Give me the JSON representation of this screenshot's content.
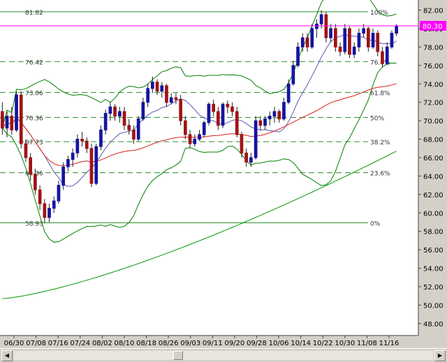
{
  "chart_data": {
    "type": "candlestick",
    "x_tick_labels": [
      "06/30",
      "07/08",
      "07/16",
      "07/24",
      "08/02",
      "08/10",
      "08/18",
      "08/26",
      "09/03",
      "09/11",
      "09/20",
      "09/28",
      "10/06",
      "10/14",
      "10/22",
      "10/30",
      "11/08",
      "11/16"
    ],
    "y_tick_labels": [
      "82.00",
      "80.00",
      "78.00",
      "76.00",
      "74.00",
      "72.00",
      "70.00",
      "68.00",
      "66.00",
      "64.00",
      "62.00",
      "60.00",
      "58.00",
      "56.00",
      "54.00",
      "52.00",
      "50.00",
      "48.00"
    ],
    "ylim": [
      46.7,
      83.1
    ],
    "grid": false,
    "current_price": "80.30",
    "colors": {
      "up": "#1414a0",
      "down": "#a01414",
      "bollinger": "#008000",
      "ma_fast": "#5a5ab4",
      "ma_mid": "#dc1e1e",
      "ma_slow": "#009600",
      "fib": "#2a8c2a",
      "price_line": "#ff00ff",
      "panel": "#d4d0c8"
    },
    "fib_labels_left": [
      "81.82",
      "76.42",
      "73.06",
      "70.36",
      "67.73",
      "64.36",
      "58.93"
    ],
    "fib_labels_right": [
      "100%",
      "76.4%",
      "61.8%",
      "50%",
      "38.2%",
      "23.6%",
      "0%"
    ],
    "fib_levels": [
      81.82,
      76.42,
      73.06,
      70.36,
      67.73,
      64.36,
      58.93
    ],
    "candles": [
      {
        "o": 71.0,
        "h": 72.0,
        "l": 68.5,
        "c": 69.2
      },
      {
        "o": 69.2,
        "h": 71.0,
        "l": 68.2,
        "c": 70.5
      },
      {
        "o": 70.5,
        "h": 71.5,
        "l": 68.5,
        "c": 69.0
      },
      {
        "o": 69.0,
        "h": 73.2,
        "l": 68.8,
        "c": 72.8
      },
      {
        "o": 72.8,
        "h": 73.2,
        "l": 67.0,
        "c": 67.5
      },
      {
        "o": 67.5,
        "h": 68.0,
        "l": 65.5,
        "c": 66.0
      },
      {
        "o": 66.0,
        "h": 66.5,
        "l": 63.5,
        "c": 64.2
      },
      {
        "o": 64.2,
        "h": 64.8,
        "l": 62.0,
        "c": 62.5
      },
      {
        "o": 62.5,
        "h": 63.0,
        "l": 60.3,
        "c": 61.0
      },
      {
        "o": 61.0,
        "h": 61.5,
        "l": 58.9,
        "c": 59.5
      },
      {
        "o": 59.5,
        "h": 61.0,
        "l": 59.0,
        "c": 60.5
      },
      {
        "o": 60.5,
        "h": 61.8,
        "l": 60.0,
        "c": 61.3
      },
      {
        "o": 61.3,
        "h": 63.5,
        "l": 61.0,
        "c": 63.0
      },
      {
        "o": 63.0,
        "h": 65.5,
        "l": 62.5,
        "c": 65.0
      },
      {
        "o": 65.0,
        "h": 66.2,
        "l": 64.5,
        "c": 65.8
      },
      {
        "o": 65.8,
        "h": 67.0,
        "l": 65.0,
        "c": 66.5
      },
      {
        "o": 66.5,
        "h": 68.5,
        "l": 66.0,
        "c": 68.0
      },
      {
        "o": 68.0,
        "h": 68.8,
        "l": 67.2,
        "c": 67.8
      },
      {
        "o": 67.8,
        "h": 68.2,
        "l": 66.5,
        "c": 67.0
      },
      {
        "o": 67.0,
        "h": 67.5,
        "l": 62.8,
        "c": 63.2
      },
      {
        "o": 63.2,
        "h": 67.5,
        "l": 63.0,
        "c": 67.2
      },
      {
        "o": 67.2,
        "h": 69.5,
        "l": 66.8,
        "c": 69.0
      },
      {
        "o": 69.0,
        "h": 71.2,
        "l": 68.5,
        "c": 70.8
      },
      {
        "o": 70.8,
        "h": 72.0,
        "l": 70.0,
        "c": 71.5
      },
      {
        "o": 71.5,
        "h": 71.8,
        "l": 70.0,
        "c": 70.5
      },
      {
        "o": 70.5,
        "h": 71.5,
        "l": 69.8,
        "c": 71.0
      },
      {
        "o": 71.0,
        "h": 71.5,
        "l": 69.0,
        "c": 69.5
      },
      {
        "o": 69.5,
        "h": 70.2,
        "l": 68.5,
        "c": 69.0
      },
      {
        "o": 69.0,
        "h": 69.5,
        "l": 67.5,
        "c": 68.0
      },
      {
        "o": 68.0,
        "h": 70.5,
        "l": 67.8,
        "c": 70.2
      },
      {
        "o": 70.2,
        "h": 72.5,
        "l": 70.0,
        "c": 72.0
      },
      {
        "o": 72.0,
        "h": 74.0,
        "l": 71.5,
        "c": 73.5
      },
      {
        "o": 73.5,
        "h": 74.8,
        "l": 73.0,
        "c": 74.2
      },
      {
        "o": 74.2,
        "h": 74.5,
        "l": 72.8,
        "c": 73.2
      },
      {
        "o": 73.2,
        "h": 74.2,
        "l": 72.5,
        "c": 73.8
      },
      {
        "o": 73.8,
        "h": 74.0,
        "l": 71.5,
        "c": 72.0
      },
      {
        "o": 72.0,
        "h": 73.0,
        "l": 71.8,
        "c": 72.5
      },
      {
        "o": 72.5,
        "h": 73.0,
        "l": 71.8,
        "c": 72.3
      },
      {
        "o": 72.3,
        "h": 72.8,
        "l": 69.5,
        "c": 70.0
      },
      {
        "o": 70.0,
        "h": 70.5,
        "l": 68.0,
        "c": 68.5
      },
      {
        "o": 68.5,
        "h": 69.0,
        "l": 67.0,
        "c": 67.5
      },
      {
        "o": 67.5,
        "h": 68.5,
        "l": 67.2,
        "c": 68.0
      },
      {
        "o": 68.0,
        "h": 69.0,
        "l": 67.8,
        "c": 68.5
      },
      {
        "o": 68.5,
        "h": 70.0,
        "l": 68.2,
        "c": 69.8
      },
      {
        "o": 69.8,
        "h": 72.0,
        "l": 69.5,
        "c": 71.8
      },
      {
        "o": 71.8,
        "h": 72.3,
        "l": 70.5,
        "c": 71.0
      },
      {
        "o": 71.0,
        "h": 71.5,
        "l": 69.0,
        "c": 69.5
      },
      {
        "o": 69.5,
        "h": 72.0,
        "l": 69.2,
        "c": 71.8
      },
      {
        "o": 71.8,
        "h": 72.2,
        "l": 70.8,
        "c": 71.5
      },
      {
        "o": 71.5,
        "h": 72.0,
        "l": 70.5,
        "c": 71.0
      },
      {
        "o": 71.0,
        "h": 71.5,
        "l": 68.2,
        "c": 68.5
      },
      {
        "o": 68.5,
        "h": 68.8,
        "l": 66.0,
        "c": 66.5
      },
      {
        "o": 66.5,
        "h": 67.0,
        "l": 65.0,
        "c": 65.5
      },
      {
        "o": 65.5,
        "h": 66.5,
        "l": 65.0,
        "c": 66.0
      },
      {
        "o": 66.0,
        "h": 70.5,
        "l": 65.8,
        "c": 70.0
      },
      {
        "o": 70.0,
        "h": 70.5,
        "l": 69.0,
        "c": 69.5
      },
      {
        "o": 69.5,
        "h": 70.5,
        "l": 69.0,
        "c": 70.2
      },
      {
        "o": 70.2,
        "h": 71.0,
        "l": 69.5,
        "c": 70.5
      },
      {
        "o": 70.5,
        "h": 71.5,
        "l": 69.8,
        "c": 71.0
      },
      {
        "o": 71.0,
        "h": 71.2,
        "l": 69.8,
        "c": 70.2
      },
      {
        "o": 70.2,
        "h": 72.5,
        "l": 70.0,
        "c": 72.0
      },
      {
        "o": 72.0,
        "h": 74.5,
        "l": 71.8,
        "c": 74.0
      },
      {
        "o": 74.0,
        "h": 76.5,
        "l": 73.8,
        "c": 76.0
      },
      {
        "o": 76.0,
        "h": 78.5,
        "l": 75.8,
        "c": 78.0
      },
      {
        "o": 78.0,
        "h": 79.5,
        "l": 77.5,
        "c": 79.0
      },
      {
        "o": 79.0,
        "h": 79.5,
        "l": 77.5,
        "c": 78.0
      },
      {
        "o": 78.0,
        "h": 80.5,
        "l": 77.8,
        "c": 80.0
      },
      {
        "o": 80.0,
        "h": 81.0,
        "l": 79.0,
        "c": 80.5
      },
      {
        "o": 80.5,
        "h": 82.0,
        "l": 80.0,
        "c": 81.5
      },
      {
        "o": 81.5,
        "h": 81.8,
        "l": 78.5,
        "c": 79.0
      },
      {
        "o": 79.0,
        "h": 80.5,
        "l": 78.5,
        "c": 80.0
      },
      {
        "o": 80.0,
        "h": 80.5,
        "l": 77.5,
        "c": 78.0
      },
      {
        "o": 78.0,
        "h": 78.5,
        "l": 77.0,
        "c": 77.5
      },
      {
        "o": 77.5,
        "h": 80.5,
        "l": 77.2,
        "c": 80.0
      },
      {
        "o": 80.0,
        "h": 80.2,
        "l": 76.8,
        "c": 77.2
      },
      {
        "o": 77.2,
        "h": 78.5,
        "l": 76.8,
        "c": 78.0
      },
      {
        "o": 78.0,
        "h": 80.0,
        "l": 77.5,
        "c": 79.5
      },
      {
        "o": 79.5,
        "h": 80.5,
        "l": 79.0,
        "c": 80.0
      },
      {
        "o": 80.0,
        "h": 80.2,
        "l": 77.5,
        "c": 78.0
      },
      {
        "o": 78.0,
        "h": 80.0,
        "l": 77.8,
        "c": 79.5
      },
      {
        "o": 79.5,
        "h": 79.8,
        "l": 77.0,
        "c": 77.5
      },
      {
        "o": 77.5,
        "h": 78.0,
        "l": 75.8,
        "c": 76.2
      },
      {
        "o": 76.2,
        "h": 78.5,
        "l": 76.0,
        "c": 78.0
      },
      {
        "o": 78.0,
        "h": 79.8,
        "l": 77.8,
        "c": 79.5
      },
      {
        "o": 79.5,
        "h": 80.5,
        "l": 79.2,
        "c": 80.3
      }
    ]
  }
}
